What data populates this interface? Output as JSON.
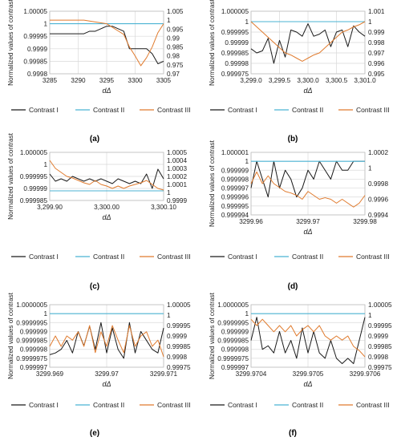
{
  "legend": {
    "items": [
      {
        "label": "Contrast I",
        "color": "#1a1a1a"
      },
      {
        "label": "Contrast II",
        "color": "#4bb3d3"
      },
      {
        "label": "Contrast III",
        "color": "#e07b2e"
      }
    ]
  },
  "chart_data": [
    {
      "type": "line",
      "caption": "(a)",
      "ylabel": "Normalized values of contrast",
      "xlabel": "dΔ",
      "xlim": [
        3285,
        3305
      ],
      "ylim_left": [
        0.9998,
        1.00005
      ],
      "ylim_right": [
        0.97,
        1.005
      ],
      "x_ticks": [
        "3285",
        "3290",
        "3295",
        "3300",
        "3305"
      ],
      "y_ticks_left": [
        "1.00005",
        "1",
        "0.99995",
        "0.9999",
        "0.99985",
        "0.9998"
      ],
      "y_ticks_right": [
        "1.005",
        "1",
        "0.995",
        "0.99",
        "0.985",
        "0.98",
        "0.975",
        "0.97"
      ],
      "series": [
        {
          "name": "Contrast I",
          "axis": "left",
          "x": [
            3285,
            3286,
            3287,
            3288,
            3289,
            3290,
            3291,
            3292,
            3293,
            3294,
            3295,
            3296,
            3297,
            3298,
            3299,
            3300,
            3301,
            3302,
            3303,
            3304,
            3305
          ],
          "y": [
            0.99996,
            0.99996,
            0.99996,
            0.99996,
            0.99996,
            0.99996,
            0.99996,
            0.99997,
            0.99997,
            0.99998,
            0.99999,
            0.99999,
            0.99998,
            0.99997,
            0.9999,
            0.9999,
            0.9999,
            0.9999,
            0.99988,
            0.99984,
            0.99985
          ]
        },
        {
          "name": "Contrast II",
          "axis": "left",
          "x": [
            3285,
            3305
          ],
          "y": [
            1,
            1
          ]
        },
        {
          "name": "Contrast III",
          "axis": "right",
          "x": [
            3285,
            3286,
            3287,
            3288,
            3289,
            3290,
            3291,
            3292,
            3293,
            3294,
            3295,
            3296,
            3297,
            3298,
            3299,
            3300,
            3301,
            3302,
            3303,
            3304,
            3305
          ],
          "y": [
            1.0,
            1.0,
            1.0,
            1.0,
            1.0,
            1.0,
            1.0,
            0.9995,
            0.999,
            0.9985,
            0.998,
            0.996,
            0.994,
            0.992,
            0.985,
            0.98,
            0.9745,
            0.979,
            0.985,
            0.993,
            0.998
          ]
        }
      ]
    },
    {
      "type": "line",
      "caption": "(b)",
      "ylabel": "Normalized values of contrast",
      "xlabel": "dΔ",
      "xlim": [
        3299.0,
        3301.0
      ],
      "ylim_left": [
        0.999975,
        1.000005
      ],
      "ylim_right": [
        0.995,
        1.001
      ],
      "x_ticks": [
        "3,299.0",
        "3,299.5",
        "3,300.0",
        "3,300.5",
        "3,301.0"
      ],
      "y_ticks_left": [
        "1.000005",
        "1",
        "0.999995",
        "0.99999",
        "0.999985",
        "0.99998",
        "0.999975"
      ],
      "y_ticks_right": [
        "1.001",
        "1",
        "0.999",
        "0.998",
        "0.997",
        "0.996",
        "0.995"
      ],
      "series": [
        {
          "name": "Contrast I",
          "axis": "left",
          "x": [
            3299.0,
            3299.1,
            3299.2,
            3299.3,
            3299.4,
            3299.5,
            3299.6,
            3299.7,
            3299.8,
            3299.9,
            3300.0,
            3300.1,
            3300.2,
            3300.3,
            3300.4,
            3300.5,
            3300.6,
            3300.7,
            3300.8,
            3300.9,
            3301.0
          ],
          "y": [
            0.999987,
            0.999985,
            0.999986,
            0.999992,
            0.99998,
            0.999991,
            0.999983,
            0.999996,
            0.999995,
            0.999993,
            0.999999,
            0.999993,
            0.999994,
            0.999996,
            0.999988,
            0.999995,
            0.999996,
            0.999988,
            0.999998,
            0.999995,
            0.999993
          ]
        },
        {
          "name": "Contrast II",
          "axis": "left",
          "x": [
            3299.0,
            3301.0
          ],
          "y": [
            1,
            1
          ]
        },
        {
          "name": "Contrast III",
          "axis": "right",
          "x": [
            3299.0,
            3299.1,
            3299.2,
            3299.3,
            3299.4,
            3299.5,
            3299.6,
            3299.7,
            3299.8,
            3299.9,
            3300.0,
            3300.1,
            3300.2,
            3300.3,
            3300.4,
            3300.5,
            3300.6,
            3300.7,
            3300.8,
            3300.9,
            3301.0
          ],
          "y": [
            1.0,
            0.9995,
            0.999,
            0.9985,
            0.998,
            0.9975,
            0.997,
            0.9968,
            0.9965,
            0.9962,
            0.9965,
            0.9968,
            0.997,
            0.9975,
            0.998,
            0.9985,
            0.999,
            0.9992,
            0.9995,
            0.9997,
            1.0
          ]
        }
      ]
    },
    {
      "type": "line",
      "caption": "(c)",
      "ylabel": "Normalized values of contrast",
      "xlabel": "dΔ",
      "xlim": [
        3299.9,
        3300.1
      ],
      "ylim_left": [
        0.999985,
        1.000005
      ],
      "ylim_right": [
        0.9999,
        1.0005
      ],
      "x_ticks": [
        "3,299.90",
        "3,300.00",
        "3,300.10"
      ],
      "y_ticks_left": [
        "1.000005",
        "1",
        "0.999995",
        "0.99999",
        "0.999985"
      ],
      "y_ticks_right": [
        "1.0005",
        "1.0004",
        "1.0003",
        "1.0002",
        "1.0001",
        "1",
        "0.9999"
      ],
      "series": [
        {
          "name": "Contrast I",
          "axis": "left",
          "x": [
            3299.9,
            3299.91,
            3299.92,
            3299.93,
            3299.94,
            3299.95,
            3299.96,
            3299.97,
            3299.98,
            3299.99,
            3300.0,
            3300.01,
            3300.02,
            3300.03,
            3300.04,
            3300.05,
            3300.06,
            3300.07,
            3300.08,
            3300.09,
            3300.1
          ],
          "y": [
            0.999996,
            0.999993,
            0.999994,
            0.999993,
            0.999995,
            0.999994,
            0.999993,
            0.999994,
            0.999993,
            0.999994,
            0.999993,
            0.999992,
            0.999994,
            0.999993,
            0.999992,
            0.999993,
            0.999992,
            0.999996,
            0.99999,
            0.999998,
            0.999994
          ]
        },
        {
          "name": "Contrast II",
          "axis": "left",
          "x": [
            3299.9,
            3300.1
          ],
          "y": [
            0.999989,
            0.999989
          ]
        },
        {
          "name": "Contrast III",
          "axis": "right",
          "x": [
            3299.9,
            3299.91,
            3299.92,
            3299.93,
            3299.94,
            3299.95,
            3299.96,
            3299.97,
            3299.98,
            3299.99,
            3300.0,
            3300.01,
            3300.02,
            3300.03,
            3300.04,
            3300.05,
            3300.06,
            3300.07,
            3300.08,
            3300.09,
            3300.1
          ],
          "y": [
            1.0004,
            1.0003,
            1.00025,
            1.0002,
            1.00018,
            1.00015,
            1.00012,
            1.0001,
            1.00015,
            1.0001,
            1.00008,
            1.00005,
            1.00008,
            1.00005,
            1.00008,
            1.0001,
            1.00012,
            1.00015,
            1.0001,
            1.00005,
            1.00003
          ]
        }
      ]
    },
    {
      "type": "line",
      "caption": "(d)",
      "ylabel": "Normalized values of contrast",
      "xlabel": "dΔ",
      "xlim": [
        3299.96,
        3299.98
      ],
      "ylim_left": [
        0.999994,
        1.000001
      ],
      "ylim_right": [
        0.9994,
        1.0002
      ],
      "x_ticks": [
        "3299.96",
        "3299.97",
        "3299.98"
      ],
      "y_ticks_left": [
        "1.000001",
        "1",
        "0.999999",
        "0.999998",
        "0.999997",
        "0.999996",
        "0.999995",
        "0.999994"
      ],
      "y_ticks_right": [
        "1.0002",
        "1",
        "0.9998",
        "0.9996",
        "0.9994"
      ],
      "series": [
        {
          "name": "Contrast I",
          "axis": "left",
          "x": [
            3299.96,
            3299.961,
            3299.962,
            3299.963,
            3299.964,
            3299.965,
            3299.966,
            3299.967,
            3299.968,
            3299.969,
            3299.97,
            3299.971,
            3299.972,
            3299.973,
            3299.974,
            3299.975,
            3299.976,
            3299.977,
            3299.978,
            3299.979,
            3299.98
          ],
          "y": [
            0.999997,
            1.0,
            0.999998,
            0.999996,
            1.0,
            0.999997,
            0.999999,
            0.999998,
            0.999996,
            0.999997,
            0.999999,
            0.999998,
            1.0,
            0.999999,
            0.999998,
            1.0,
            0.999999,
            0.999999,
            1.0,
            1.0,
            1.0
          ]
        },
        {
          "name": "Contrast II",
          "axis": "left",
          "x": [
            3299.96,
            3299.98
          ],
          "y": [
            1,
            1
          ]
        },
        {
          "name": "Contrast III",
          "axis": "right",
          "x": [
            3299.96,
            3299.961,
            3299.962,
            3299.963,
            3299.964,
            3299.965,
            3299.966,
            3299.967,
            3299.968,
            3299.969,
            3299.97,
            3299.971,
            3299.972,
            3299.973,
            3299.974,
            3299.975,
            3299.976,
            3299.977,
            3299.978,
            3299.979,
            3299.98
          ],
          "y": [
            0.9998,
            0.99995,
            0.9998,
            0.9999,
            0.9998,
            0.99975,
            0.9997,
            0.99968,
            0.99965,
            0.9996,
            0.9997,
            0.99965,
            0.9996,
            0.99962,
            0.9996,
            0.99955,
            0.9996,
            0.99955,
            0.9995,
            0.99955,
            0.99965
          ]
        }
      ]
    },
    {
      "type": "line",
      "caption": "(e)",
      "ylabel": "Normalized values of contrast",
      "xlabel": "dΔ",
      "xlim": [
        3299.969,
        3299.971
      ],
      "ylim_left": [
        0.999997,
        1.0000005
      ],
      "ylim_right": [
        0.99975,
        1.00005
      ],
      "x_ticks": [
        "3299.969",
        "3299.97",
        "3299.971"
      ],
      "y_ticks_left": [
        "1.0000005",
        "1",
        "0.9999995",
        "0.999999",
        "0.9999985",
        "0.999998",
        "0.9999975",
        "0.999997"
      ],
      "y_ticks_right": [
        "1.00005",
        "1",
        "0.99995",
        "0.9999",
        "0.99985",
        "0.9998",
        "0.99975"
      ],
      "series": [
        {
          "name": "Contrast I",
          "axis": "left",
          "x": [
            3299.969,
            3299.9691,
            3299.9692,
            3299.9693,
            3299.9694,
            3299.9695,
            3299.9696,
            3299.9697,
            3299.9698,
            3299.9699,
            3299.97,
            3299.9701,
            3299.9702,
            3299.9703,
            3299.9704,
            3299.9705,
            3299.9706,
            3299.9707,
            3299.9708,
            3299.9709,
            3299.971
          ],
          "y": [
            0.9999977,
            0.9999978,
            0.999998,
            0.9999985,
            0.9999978,
            0.999999,
            0.9999982,
            0.9999993,
            0.999998,
            0.9999995,
            0.9999978,
            0.9999992,
            0.999998,
            0.9999975,
            0.9999995,
            0.9999978,
            0.999999,
            0.9999985,
            0.999998,
            0.9999978,
            0.9999992
          ]
        },
        {
          "name": "Contrast II",
          "axis": "left",
          "x": [
            3299.969,
            3299.971
          ],
          "y": [
            1,
            1
          ]
        },
        {
          "name": "Contrast III",
          "axis": "right",
          "x": [
            3299.969,
            3299.9691,
            3299.9692,
            3299.9693,
            3299.9694,
            3299.9695,
            3299.9696,
            3299.9697,
            3299.9698,
            3299.9699,
            3299.97,
            3299.9701,
            3299.9702,
            3299.9703,
            3299.9704,
            3299.9705,
            3299.9706,
            3299.9707,
            3299.9708,
            3299.9709,
            3299.971
          ],
          "y": [
            0.99985,
            0.9999,
            0.99985,
            0.9999,
            0.99988,
            0.99992,
            0.99985,
            0.99995,
            0.99982,
            0.99992,
            0.99985,
            0.99995,
            0.99988,
            0.99982,
            0.99995,
            0.99985,
            0.9999,
            0.99992,
            0.99985,
            0.99988,
            0.9998
          ]
        }
      ]
    },
    {
      "type": "line",
      "caption": "(f)",
      "ylabel": "Normalized values of contrast",
      "xlabel": "dΔ",
      "xlim": [
        3299.9704,
        3299.9706
      ],
      "ylim_left": [
        0.999997,
        1.0000005
      ],
      "ylim_right": [
        0.99975,
        1.00005
      ],
      "x_ticks": [
        "3299.9704",
        "3299.9705",
        "3299.9706"
      ],
      "y_ticks_left": [
        "1.0000005",
        "1",
        "0.9999995",
        "0.999999",
        "0.9999985",
        "0.999998",
        "0.9999975",
        "0.999997"
      ],
      "y_ticks_right": [
        "1.00005",
        "1",
        "0.99995",
        "0.9999",
        "0.99985",
        "0.9998",
        "0.99975"
      ],
      "series": [
        {
          "name": "Contrast I",
          "axis": "left",
          "x": [
            3299.9704,
            3299.97041,
            3299.97042,
            3299.97043,
            3299.97044,
            3299.97045,
            3299.97046,
            3299.97047,
            3299.97048,
            3299.97049,
            3299.9705,
            3299.97051,
            3299.97052,
            3299.97053,
            3299.97054,
            3299.97055,
            3299.97056,
            3299.97057,
            3299.97058,
            3299.97059,
            3299.9706
          ],
          "y": [
            0.9999985,
            0.9999998,
            0.999998,
            0.9999982,
            0.9999978,
            0.999999,
            0.9999978,
            0.9999985,
            0.9999975,
            0.9999992,
            0.9999978,
            0.999999,
            0.9999978,
            0.9999975,
            0.9999985,
            0.9999975,
            0.9999972,
            0.9999975,
            0.9999972,
            0.9999985,
            0.9999998
          ]
        },
        {
          "name": "Contrast II",
          "axis": "left",
          "x": [
            3299.9704,
            3299.9706
          ],
          "y": [
            1,
            1
          ]
        },
        {
          "name": "Contrast III",
          "axis": "right",
          "x": [
            3299.9704,
            3299.97041,
            3299.97042,
            3299.97043,
            3299.97044,
            3299.97045,
            3299.97046,
            3299.97047,
            3299.97048,
            3299.97049,
            3299.9705,
            3299.97051,
            3299.97052,
            3299.97053,
            3299.97054,
            3299.97055,
            3299.97056,
            3299.97057,
            3299.97058,
            3299.97059,
            3299.9706
          ],
          "y": [
            0.99998,
            0.99995,
            0.99998,
            0.99995,
            0.99992,
            0.99995,
            0.99992,
            0.99995,
            0.9999,
            0.99993,
            0.99995,
            0.99992,
            0.99995,
            0.9999,
            0.99988,
            0.9999,
            0.99988,
            0.9999,
            0.99985,
            0.99983,
            0.9998
          ]
        }
      ]
    }
  ]
}
